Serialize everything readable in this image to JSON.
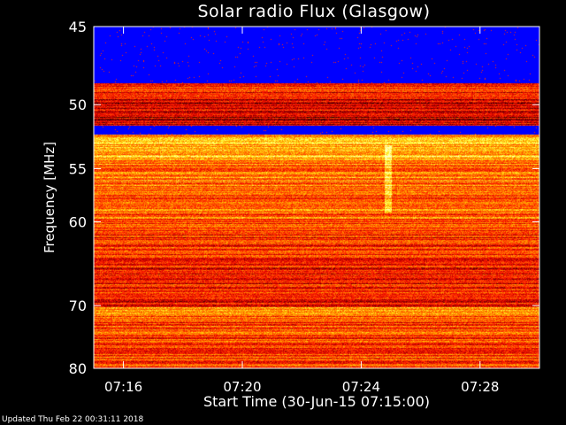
{
  "chart_data": {
    "type": "heatmap",
    "title": "Solar radio Flux (Glasgow)",
    "xlabel": "Start Time (30-Jun-15 07:15:00)",
    "ylabel": "Frequency [MHz]",
    "x_ticks": [
      "07:16",
      "07:20",
      "07:24",
      "07:28"
    ],
    "x_tick_minutes": [
      1,
      5,
      9,
      13
    ],
    "xlim_minutes": [
      0,
      15
    ],
    "y_ticks": [
      45,
      50,
      55,
      60,
      70,
      80
    ],
    "ylim": [
      45,
      80
    ],
    "y_scale": "reciprocal",
    "colormap": [
      "#000000",
      "#6e0000",
      "#c80000",
      "#ff2000",
      "#ff6a00",
      "#ffb400",
      "#ffff40",
      "#ffffc0"
    ],
    "bands": [
      {
        "range": [
          45,
          48.5
        ],
        "level": 0.05,
        "color": "#0000ff"
      },
      {
        "range": [
          48.5,
          49.5
        ],
        "level": 0.45
      },
      {
        "range": [
          49.5,
          51.5
        ],
        "level": 0.3
      },
      {
        "range": [
          51.5,
          52.2
        ],
        "level": 0.05,
        "color": "#0000ff"
      },
      {
        "range": [
          52.2,
          54
        ],
        "level": 0.72
      },
      {
        "range": [
          54,
          56
        ],
        "level": 0.6
      },
      {
        "range": [
          56,
          60
        ],
        "level": 0.55
      },
      {
        "range": [
          60,
          65
        ],
        "level": 0.45
      },
      {
        "range": [
          65,
          70
        ],
        "level": 0.4
      },
      {
        "range": [
          70,
          72
        ],
        "level": 0.55
      },
      {
        "range": [
          72,
          80
        ],
        "level": 0.5
      }
    ],
    "burst": {
      "time_minutes": 9.9,
      "freq_range": [
        53,
        59
      ]
    },
    "grid": false,
    "legend": "none"
  },
  "footer": "Updated Thu Feb 22 00:31:11 2018"
}
